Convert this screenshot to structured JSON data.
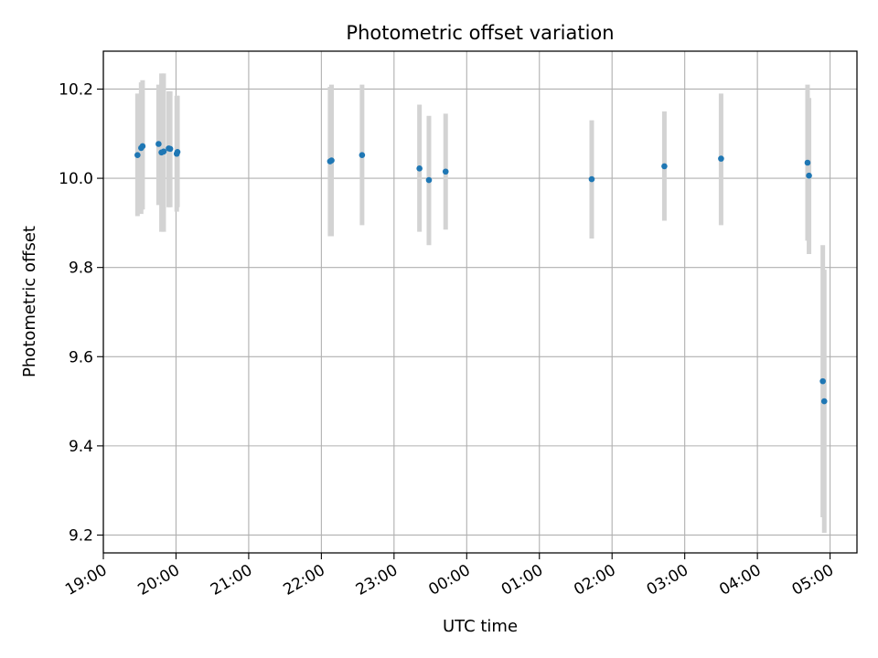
{
  "chart_data": {
    "type": "scatter",
    "title": "Photometric offset variation",
    "xlabel": "UTC time",
    "ylabel": "Photometric offset",
    "x_axis": "time (hours of night, x = 0 at 00:00)",
    "xlim": [
      -5.0,
      5.37
    ],
    "ylim": [
      9.16,
      10.285
    ],
    "grid": true,
    "x_ticks": [
      {
        "value": -5,
        "label": "19:00"
      },
      {
        "value": -4,
        "label": "20:00"
      },
      {
        "value": -3,
        "label": "21:00"
      },
      {
        "value": -2,
        "label": "22:00"
      },
      {
        "value": -1,
        "label": "23:00"
      },
      {
        "value": 0,
        "label": "00:00"
      },
      {
        "value": 1,
        "label": "01:00"
      },
      {
        "value": 2,
        "label": "02:00"
      },
      {
        "value": 3,
        "label": "03:00"
      },
      {
        "value": 4,
        "label": "04:00"
      },
      {
        "value": 5,
        "label": "05:00"
      }
    ],
    "y_ticks": [
      {
        "value": 9.2,
        "label": "9.2"
      },
      {
        "value": 9.4,
        "label": "9.4"
      },
      {
        "value": 9.6,
        "label": "9.6"
      },
      {
        "value": 9.8,
        "label": "9.8"
      },
      {
        "value": 10.0,
        "label": "10.0"
      },
      {
        "value": 10.2,
        "label": "10.2"
      }
    ],
    "series": [
      {
        "marker_color": "#1f77b4",
        "errorbar_color": "#d3d3d3",
        "points": [
          {
            "x": -4.53,
            "y": 10.052,
            "ylow": 9.915,
            "yhigh": 10.19
          },
          {
            "x": -4.48,
            "y": 10.068,
            "ylow": 9.92,
            "yhigh": 10.215
          },
          {
            "x": -4.46,
            "y": 10.072,
            "ylow": 9.93,
            "yhigh": 10.22
          },
          {
            "x": -4.24,
            "y": 10.077,
            "ylow": 9.94,
            "yhigh": 10.21
          },
          {
            "x": -4.2,
            "y": 10.058,
            "ylow": 9.88,
            "yhigh": 10.235
          },
          {
            "x": -4.17,
            "y": 10.06,
            "ylow": 9.88,
            "yhigh": 10.235
          },
          {
            "x": -4.1,
            "y": 10.067,
            "ylow": 9.935,
            "yhigh": 10.195
          },
          {
            "x": -4.08,
            "y": 10.066,
            "ylow": 9.935,
            "yhigh": 10.195
          },
          {
            "x": -3.99,
            "y": 10.055,
            "ylow": 9.925,
            "yhigh": 10.185
          },
          {
            "x": -3.98,
            "y": 10.059,
            "ylow": 9.935,
            "yhigh": 10.185
          },
          {
            "x": -1.88,
            "y": 10.038,
            "ylow": 9.87,
            "yhigh": 10.205
          },
          {
            "x": -1.86,
            "y": 10.04,
            "ylow": 9.87,
            "yhigh": 10.21
          },
          {
            "x": -1.44,
            "y": 10.052,
            "ylow": 9.895,
            "yhigh": 10.21
          },
          {
            "x": -0.65,
            "y": 10.022,
            "ylow": 9.88,
            "yhigh": 10.165
          },
          {
            "x": -0.52,
            "y": 9.996,
            "ylow": 9.85,
            "yhigh": 10.14
          },
          {
            "x": -0.29,
            "y": 10.015,
            "ylow": 9.885,
            "yhigh": 10.145
          },
          {
            "x": 1.72,
            "y": 9.998,
            "ylow": 9.865,
            "yhigh": 10.13
          },
          {
            "x": 2.72,
            "y": 10.027,
            "ylow": 9.905,
            "yhigh": 10.15
          },
          {
            "x": 3.5,
            "y": 10.044,
            "ylow": 9.895,
            "yhigh": 10.19
          },
          {
            "x": 4.69,
            "y": 10.035,
            "ylow": 9.86,
            "yhigh": 10.21
          },
          {
            "x": 4.71,
            "y": 10.006,
            "ylow": 9.83,
            "yhigh": 10.18
          },
          {
            "x": 4.9,
            "y": 9.545,
            "ylow": 9.24,
            "yhigh": 9.85
          },
          {
            "x": 4.92,
            "y": 9.5,
            "ylow": 9.205,
            "yhigh": 9.795
          }
        ]
      }
    ]
  }
}
